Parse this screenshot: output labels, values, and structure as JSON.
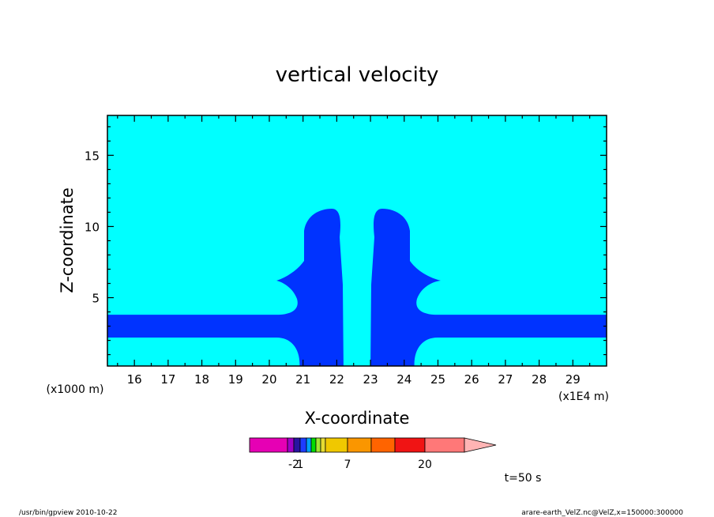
{
  "chart_data": {
    "type": "heatmap",
    "title": "vertical velocity",
    "xlabel": "X-coordinate",
    "ylabel": "Z-coordinate",
    "x_unit": "(x1E4 m)",
    "y_unit": "(x1000 m)",
    "xlim": [
      15.2,
      30.0
    ],
    "ylim": [
      0.2,
      17.8
    ],
    "x_ticks": [
      "16",
      "17",
      "18",
      "19",
      "20",
      "21",
      "22",
      "23",
      "24",
      "25",
      "26",
      "27",
      "28",
      "29"
    ],
    "y_ticks": [
      "5",
      "10",
      "15"
    ],
    "background_level_color": "#00ffff",
    "feature_color": "#0033ff",
    "features": [
      {
        "name": "horizontal band",
        "x_range": [
          15.2,
          30.0
        ],
        "z_range": [
          2.2,
          3.8
        ]
      },
      {
        "name": "left column",
        "x_range": [
          20.9,
          22.2
        ],
        "z_range": [
          0.2,
          11.2
        ]
      },
      {
        "name": "right column",
        "x_range": [
          23.0,
          24.3
        ],
        "z_range": [
          0.2,
          11.2
        ]
      }
    ],
    "colorbar": {
      "colors": [
        "#e600b4",
        "#a000c8",
        "#2814a0",
        "#1e3cff",
        "#00a0ff",
        "#00dc00",
        "#a0e632",
        "#e6dc32",
        "#f0c800",
        "#fa9600",
        "#ff6400",
        "#f01414",
        "#ff7878",
        "#ffb4b4"
      ],
      "tick_labels": [
        "-2",
        "1",
        "7",
        "20"
      ]
    },
    "time_label": "t=50 s"
  },
  "footer": {
    "left": "/usr/bin/gpview   2010-10-22",
    "right": "arare-earth_VelZ.nc@VelZ,x=150000:300000"
  }
}
